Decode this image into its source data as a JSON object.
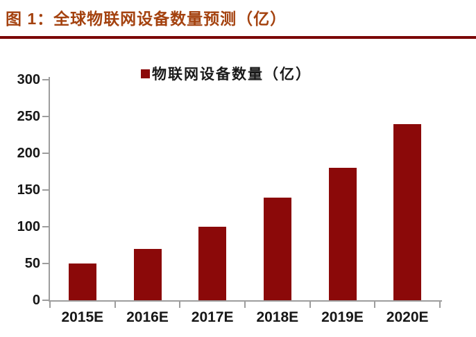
{
  "page": {
    "title": "图 1：全球物联网设备数量预测（亿）"
  },
  "chart_data": {
    "type": "bar",
    "title": "图 1：全球物联网设备数量预测（亿）",
    "legend": [
      "物联网设备数量（亿）"
    ],
    "legend_position": "top-center",
    "categories": [
      "2015E",
      "2016E",
      "2017E",
      "2018E",
      "2019E",
      "2020E"
    ],
    "values": [
      50,
      70,
      100,
      140,
      180,
      240
    ],
    "xlabel": "",
    "ylabel": "",
    "ylim": [
      0,
      300
    ],
    "yticks": [
      0,
      50,
      100,
      150,
      200,
      250,
      300
    ],
    "grid": false,
    "colors": {
      "bar": "#8B0909",
      "title": "#A4420F",
      "divider": "#7A0404",
      "axis": "#9D9D9D",
      "tick_label": "#171717"
    }
  }
}
